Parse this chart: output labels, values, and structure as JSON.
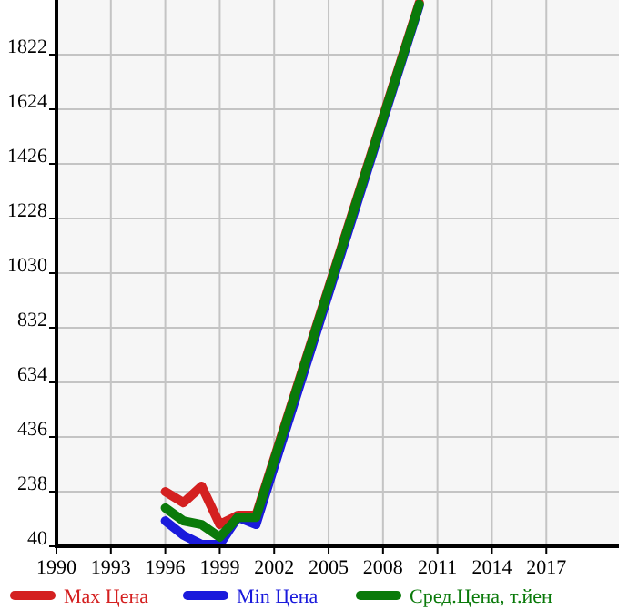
{
  "chart_data": {
    "type": "line",
    "x": [
      1996,
      1997,
      1998,
      1999,
      2000,
      2001,
      2010
    ],
    "series": [
      {
        "name": "Max Цена",
        "color": "#d42020",
        "values": [
          238,
          198,
          258,
          119,
          152,
          152,
          2010
        ]
      },
      {
        "name": "Min Цена",
        "color": "#1a1adc",
        "values": [
          132,
          80,
          47,
          47,
          145,
          119,
          2000
        ]
      },
      {
        "name": "Сред.Цена, т.йен",
        "color": "#0a7a0a",
        "values": [
          179,
          132,
          119,
          73,
          145,
          145,
          2005
        ]
      }
    ],
    "xlim": [
      1990,
      2021
    ],
    "xticks": [
      1990,
      1993,
      1996,
      1999,
      2002,
      2005,
      2008,
      2011,
      2014,
      2017
    ],
    "ylim": [
      40,
      2020
    ],
    "yticks": [
      40,
      238,
      436,
      634,
      832,
      1030,
      1228,
      1426,
      1624,
      1822
    ],
    "grid": true,
    "legend": "bottom",
    "marker": "none",
    "line_style": "solid"
  }
}
